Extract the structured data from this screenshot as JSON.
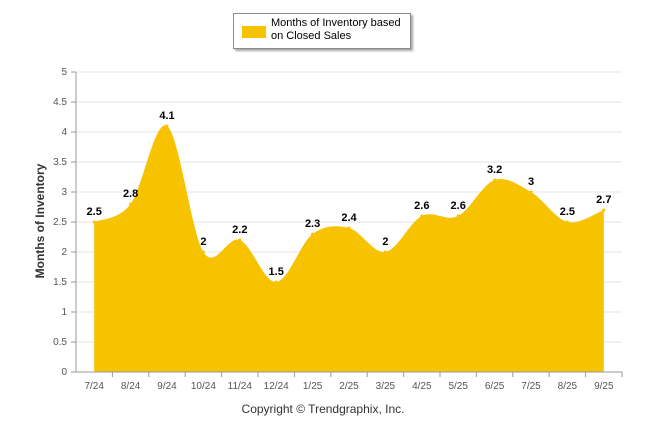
{
  "chart_data": {
    "type": "area",
    "categories": [
      "7/24",
      "8/24",
      "9/24",
      "10/24",
      "11/24",
      "12/24",
      "1/25",
      "2/25",
      "3/25",
      "4/25",
      "5/25",
      "6/25",
      "7/25",
      "8/25",
      "9/25"
    ],
    "series": [
      {
        "name": "Months of Inventory based on Closed Sales",
        "values": [
          2.5,
          2.8,
          4.1,
          2,
          2.2,
          1.5,
          2.3,
          2.4,
          2,
          2.6,
          2.6,
          3.2,
          3,
          2.5,
          2.7
        ],
        "data_labels": [
          "2.5",
          "2.8",
          "4.1",
          "2",
          "2.2",
          "1.5",
          "2.3",
          "2.4",
          "2",
          "2.6",
          "2.6",
          "3.2",
          "3",
          "2.5",
          "2.7"
        ]
      }
    ],
    "ylabel": "Months of Inventory",
    "xlabel": "",
    "ylim": [
      0,
      5
    ],
    "yticks": [
      "0",
      "0.5",
      "1",
      "1.5",
      "2",
      "2.5",
      "3",
      "3.5",
      "4",
      "4.5",
      "5"
    ],
    "grid": true,
    "legend_position": "top-center",
    "colors": {
      "series": "#F7C200",
      "grid": "#e6e6e6",
      "axis": "#999999"
    }
  },
  "footer": {
    "copyright": "Copyright © Trendgraphix, Inc."
  }
}
